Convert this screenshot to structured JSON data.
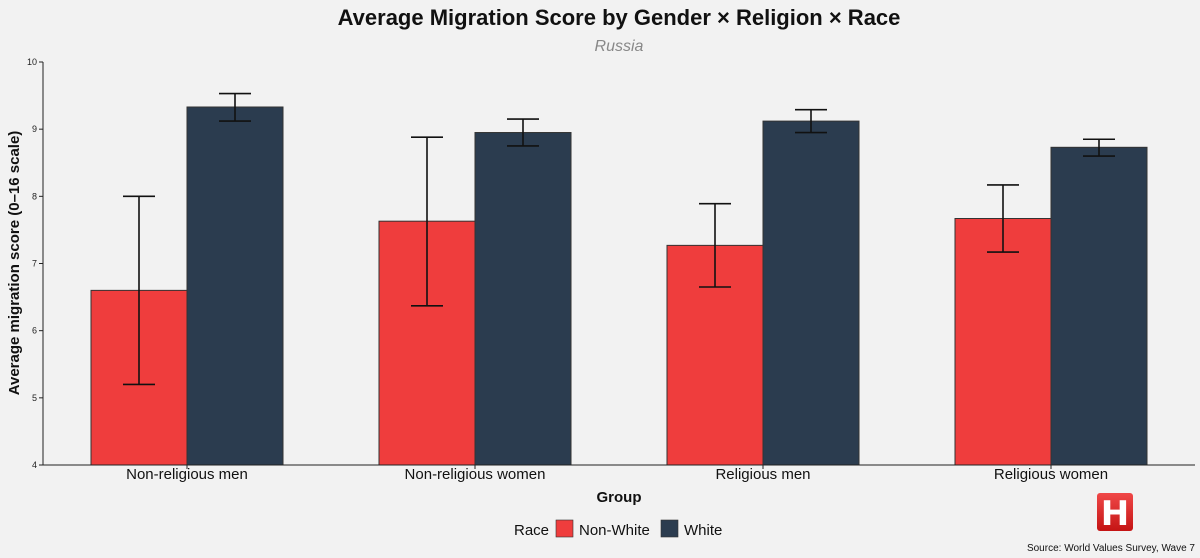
{
  "chart_data": {
    "type": "bar",
    "title": "Average Migration Score by Gender × Religion × Race",
    "subtitle": "Russia",
    "xlabel": "Group",
    "ylabel": "Average migration score (0–16 scale)",
    "ylim": [
      4,
      10
    ],
    "yticks": [
      "4",
      "5",
      "6",
      "7",
      "8",
      "9",
      "10"
    ],
    "categories": [
      "Non-religious men",
      "Non-religious women",
      "Religious men",
      "Religious women"
    ],
    "series": [
      {
        "name": "Non-White",
        "color": "#ef3d3d",
        "values": [
          6.6,
          7.63,
          7.27,
          7.67
        ],
        "err_low": [
          5.2,
          6.37,
          6.65,
          7.17
        ],
        "err_high": [
          8.0,
          8.88,
          7.89,
          8.17
        ]
      },
      {
        "name": "White",
        "color": "#2b3c4f",
        "values": [
          9.33,
          8.95,
          9.12,
          8.73
        ],
        "err_low": [
          9.12,
          8.75,
          8.95,
          8.6
        ],
        "err_high": [
          9.53,
          9.15,
          9.29,
          8.85
        ]
      }
    ],
    "legend_title": "Race",
    "legend_position": "bottom",
    "source": "Source: World Values Survey, Wave 7"
  },
  "logo": {
    "letter": "H",
    "color": "#e02020"
  }
}
